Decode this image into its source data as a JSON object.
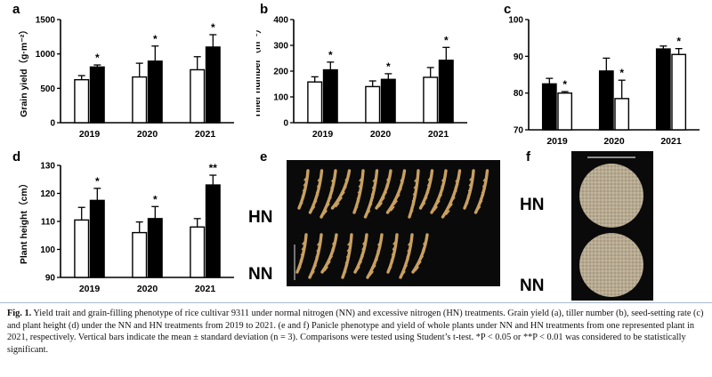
{
  "panels": {
    "a": "a",
    "b": "b",
    "c": "c",
    "d": "d",
    "e": "e",
    "f": "f"
  },
  "photo_labels": {
    "e_hn": "HN",
    "e_nn": "NN",
    "f_hn": "HN",
    "f_nn": "NN"
  },
  "caption": {
    "fig": "Fig. 1.",
    "text": " Yield trait and grain-filling phenotype of rice cultivar 9311 under normal nitrogen (NN) and excessive nitrogen (HN) treatments. Grain yield (a), tiller number (b), seed-setting rate (c) and plant height (d) under the NN and HN treatments from 2019 to 2021. (e and f) Panicle phenotype and yield of whole plants under NN and HN treatments from one represented plant in 2021, respectively. Vertical bars indicate the mean ± standard deviation (n = 3). Comparisons were tested using Student’s t-test. *P < 0.05 or **P < 0.01 was considered to be statistically significant."
  },
  "colors": {
    "nn_fill": "#ffffff",
    "hn_fill": "#000000",
    "photo_bg": "#0a0a0a",
    "panicle": "#c9a060"
  },
  "chart_data": [
    {
      "id": "a",
      "type": "bar",
      "ylabel": "Grain yield（g·m⁻²）",
      "ylim": [
        0,
        1500
      ],
      "yticks": [
        0,
        500,
        1000,
        1500
      ],
      "categories": [
        "2019",
        "2020",
        "2021"
      ],
      "series": [
        {
          "fill": "white",
          "values": [
            625,
            665,
            770
          ],
          "err": [
            60,
            200,
            190
          ]
        },
        {
          "fill": "black",
          "values": [
            810,
            895,
            1100
          ],
          "err": [
            30,
            220,
            180
          ]
        }
      ],
      "annotations": [
        {
          "series": 1,
          "category": 0,
          "text": "*"
        },
        {
          "series": 1,
          "category": 1,
          "text": "*"
        },
        {
          "series": 1,
          "category": 2,
          "text": "*"
        }
      ]
    },
    {
      "id": "b",
      "type": "bar",
      "ylabel": "Tiller number（m⁻²）",
      "ylim": [
        0,
        400
      ],
      "yticks": [
        0,
        100,
        200,
        300,
        400
      ],
      "categories": [
        "2019",
        "2020",
        "2021"
      ],
      "series": [
        {
          "fill": "white",
          "values": [
            158,
            140,
            176
          ],
          "err": [
            20,
            22,
            38
          ]
        },
        {
          "fill": "black",
          "values": [
            205,
            168,
            242
          ],
          "err": [
            30,
            22,
            50
          ]
        }
      ],
      "annotations": [
        {
          "series": 1,
          "category": 0,
          "text": "*"
        },
        {
          "series": 1,
          "category": 1,
          "text": "*"
        },
        {
          "series": 1,
          "category": 2,
          "text": "*"
        }
      ]
    },
    {
      "id": "c",
      "type": "bar",
      "ylabel": "Seed setting rate (%)",
      "ylim": [
        70,
        100
      ],
      "yticks": [
        70,
        80,
        90,
        100
      ],
      "categories": [
        "2019",
        "2020",
        "2021"
      ],
      "series": [
        {
          "fill": "black",
          "values": [
            82.5,
            86,
            92
          ],
          "err": [
            1.5,
            3.5,
            0.8
          ]
        },
        {
          "fill": "white",
          "values": [
            80,
            78.5,
            90.5
          ],
          "err": [
            0.4,
            5,
            1.6
          ]
        }
      ],
      "annotations": [
        {
          "series": 1,
          "category": 0,
          "text": "*"
        },
        {
          "series": 1,
          "category": 1,
          "text": "*"
        },
        {
          "series": 1,
          "category": 2,
          "text": "*"
        }
      ]
    },
    {
      "id": "d",
      "type": "bar",
      "ylabel": "Plant height（cm）",
      "ylim": [
        90,
        130
      ],
      "yticks": [
        90,
        100,
        110,
        120,
        130
      ],
      "categories": [
        "2019",
        "2020",
        "2021"
      ],
      "series": [
        {
          "fill": "white",
          "values": [
            110.5,
            106,
            108
          ],
          "err": [
            4.5,
            3.8,
            3
          ]
        },
        {
          "fill": "black",
          "values": [
            117.5,
            111,
            123
          ],
          "err": [
            4.3,
            4.3,
            3.5
          ]
        }
      ],
      "annotations": [
        {
          "series": 1,
          "category": 0,
          "text": "*"
        },
        {
          "series": 1,
          "category": 1,
          "text": "*"
        },
        {
          "series": 1,
          "category": 2,
          "text": "**"
        }
      ]
    }
  ]
}
